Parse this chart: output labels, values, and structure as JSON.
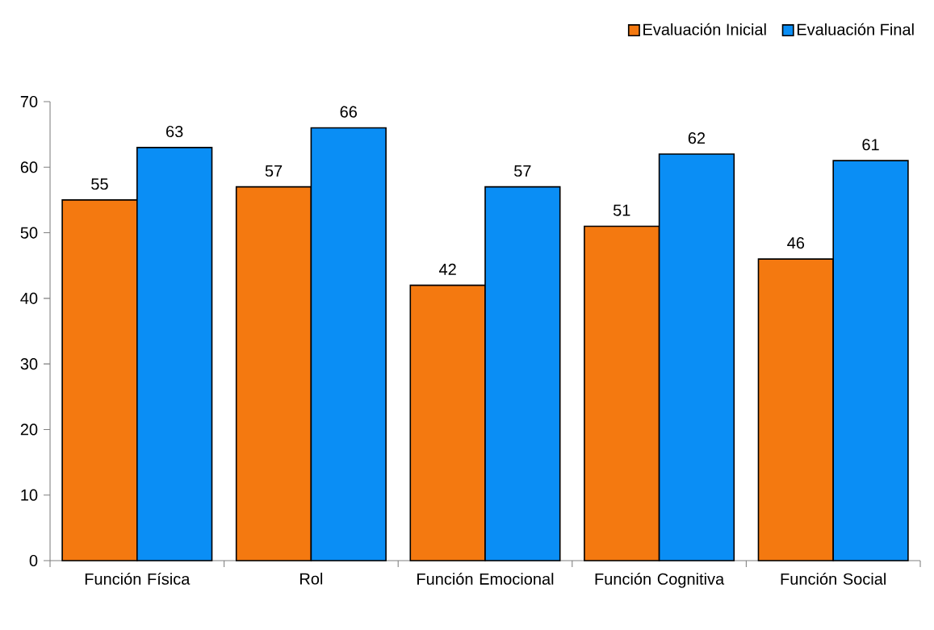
{
  "chart_data": {
    "type": "bar",
    "categories": [
      "Función Física",
      "Rol",
      "Función Emocional",
      "Función Cognitiva",
      "Función Social"
    ],
    "series": [
      {
        "name": "Evaluación Inicial",
        "color": "#f47910",
        "values": [
          55,
          57,
          42,
          51,
          46
        ]
      },
      {
        "name": "Evaluación Final",
        "color": "#0a8ef5",
        "values": [
          63,
          66,
          57,
          62,
          61
        ]
      }
    ],
    "ylim": [
      0,
      70
    ],
    "yticks": [
      0,
      10,
      20,
      30,
      40,
      50,
      60,
      70
    ],
    "data_labels": true,
    "legend": "top right",
    "grid": false
  }
}
